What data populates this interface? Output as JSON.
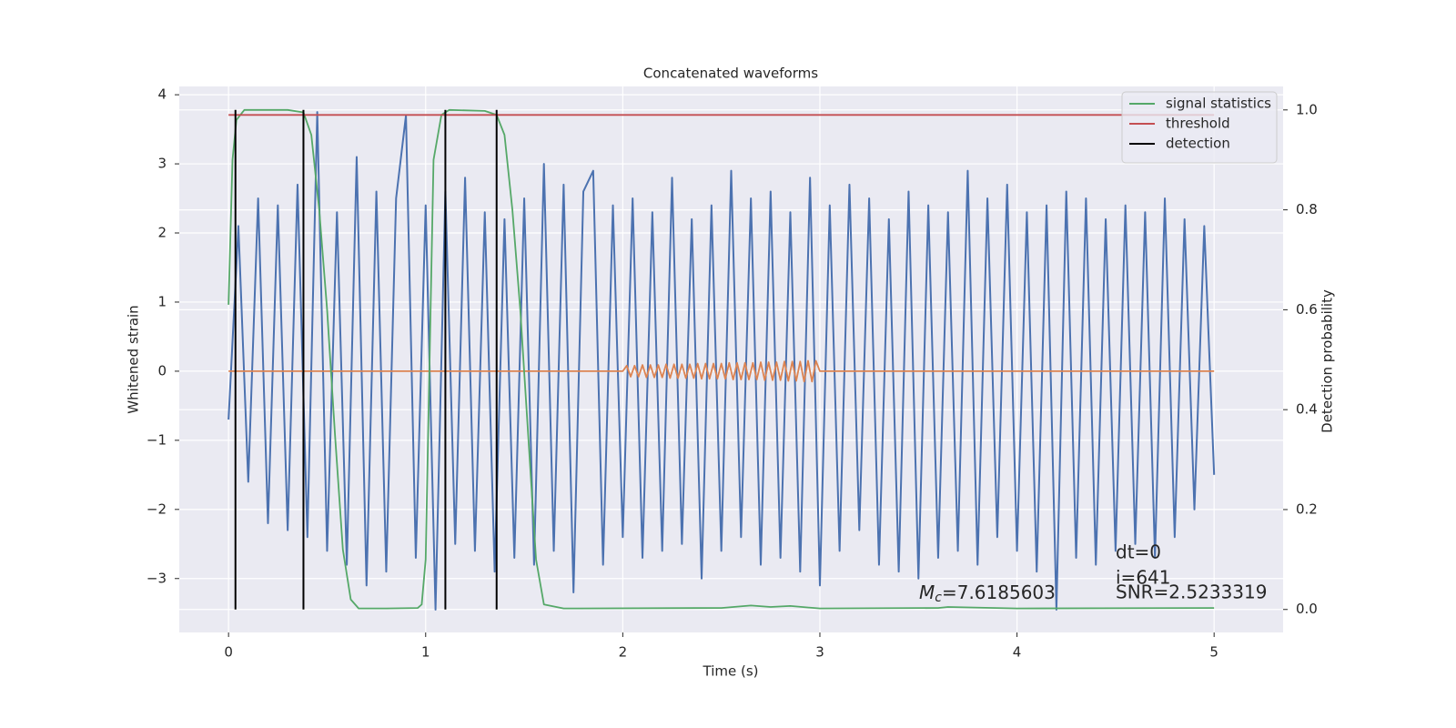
{
  "chart_data": {
    "type": "line",
    "title": "Concatenated waveforms",
    "x_label": "Time (s)",
    "y_label": "Whitened strain",
    "y2_label": "Detection probability",
    "xlim": [
      -0.25,
      5.35
    ],
    "ylim": [
      -3.78,
      4.12
    ],
    "y2lim": [
      -0.046,
      1.047
    ],
    "xticks": [
      0,
      1,
      2,
      3,
      4,
      5
    ],
    "yticks": [
      {
        "value": -3,
        "label": "−3"
      },
      {
        "value": -2,
        "label": "−2"
      },
      {
        "value": -1,
        "label": "−1"
      },
      0,
      1,
      2,
      3,
      4
    ],
    "y2ticks": [
      {
        "value": 0,
        "label": "0.0"
      },
      {
        "value": 0.2,
        "label": "0.2"
      },
      {
        "value": 0.4,
        "label": "0.4"
      },
      {
        "value": 0.6,
        "label": "0.6"
      },
      {
        "value": 0.8,
        "label": "0.8"
      },
      {
        "value": 1.0,
        "label": "1.0"
      }
    ],
    "grid": true,
    "legend": "upper right",
    "series": [
      {
        "color": "#4c72b0",
        "x": [
          0,
          0.05,
          0.1,
          0.15,
          0.2,
          0.25,
          0.3,
          0.35,
          0.4,
          0.45,
          0.5,
          0.55,
          0.6,
          0.65,
          0.7,
          0.75,
          0.8,
          0.85,
          0.9,
          0.95,
          1,
          1.05,
          1.1,
          1.15,
          1.2,
          1.25,
          1.3,
          1.35,
          1.4,
          1.45,
          1.5,
          1.55,
          1.6,
          1.65,
          1.7,
          1.75,
          1.8,
          1.85,
          1.9,
          1.95,
          2,
          2.05,
          2.1,
          2.15,
          2.2,
          2.25,
          2.3,
          2.35,
          2.4,
          2.45,
          2.5,
          2.55,
          2.6,
          2.65,
          2.7,
          2.75,
          2.8,
          2.85,
          2.9,
          2.95,
          3,
          3.05,
          3.1,
          3.15,
          3.2,
          3.25,
          3.3,
          3.35,
          3.4,
          3.45,
          3.5,
          3.55,
          3.6,
          3.65,
          3.7,
          3.75,
          3.8,
          3.85,
          3.9,
          3.95,
          4,
          4.05,
          4.1,
          4.15,
          4.2,
          4.25,
          4.3,
          4.35,
          4.4,
          4.45,
          4.5,
          4.55,
          4.6,
          4.65,
          4.7,
          4.75,
          4.8,
          4.85,
          4.9,
          4.95,
          5
        ],
        "values": [
          -0.7,
          2.1,
          -1.6,
          2.5,
          -2.2,
          2.4,
          -2.3,
          2.7,
          -2.4,
          3.75,
          -2.6,
          2.3,
          -2.8,
          3.1,
          -3.1,
          2.6,
          -2.9,
          2.5,
          3.7,
          -2.7,
          2.4,
          -3.45,
          2.6,
          -2.5,
          2.8,
          -2.6,
          2.3,
          -2.9,
          2.2,
          -2.7,
          2.5,
          -2.8,
          3.0,
          -2.6,
          2.7,
          -3.2,
          2.6,
          2.9,
          -2.8,
          2.4,
          -2.4,
          2.5,
          -2.7,
          2.3,
          -2.6,
          2.8,
          -2.5,
          2.2,
          -3.0,
          2.4,
          -2.6,
          2.9,
          -2.4,
          2.5,
          -2.8,
          2.6,
          -2.7,
          2.3,
          -2.9,
          2.8,
          -3.1,
          2.4,
          -2.6,
          2.7,
          -2.3,
          2.5,
          -2.8,
          2.2,
          -2.9,
          2.6,
          -3.0,
          2.4,
          -2.7,
          2.3,
          -2.6,
          2.9,
          -2.8,
          2.5,
          -2.4,
          2.7,
          -2.6,
          2.3,
          -2.9,
          2.4,
          -3.45,
          2.6,
          -2.7,
          2.5,
          -2.8,
          2.2,
          -2.6,
          2.4,
          -2.5,
          2.3,
          -2.7,
          2.5,
          -2.4,
          2.2,
          -2.0,
          2.1,
          -1.5
        ]
      },
      {
        "color": "#dd8452",
        "x": [
          0,
          2,
          2.02,
          2.04,
          2.06,
          2.08,
          2.1,
          2.12,
          2.14,
          2.16,
          2.18,
          2.2,
          2.22,
          2.24,
          2.26,
          2.28,
          2.3,
          2.32,
          2.34,
          2.36,
          2.38,
          2.4,
          2.42,
          2.44,
          2.46,
          2.48,
          2.5,
          2.52,
          2.54,
          2.56,
          2.58,
          2.6,
          2.62,
          2.64,
          2.66,
          2.68,
          2.7,
          2.72,
          2.74,
          2.76,
          2.78,
          2.8,
          2.82,
          2.84,
          2.86,
          2.88,
          2.9,
          2.92,
          2.94,
          2.96,
          2.98,
          3,
          5
        ],
        "values": [
          0,
          0,
          0.08,
          -0.08,
          0.08,
          -0.08,
          0.09,
          -0.09,
          0.09,
          -0.09,
          0.09,
          -0.09,
          0.1,
          -0.1,
          0.1,
          -0.1,
          0.1,
          -0.1,
          0.1,
          -0.1,
          0.11,
          -0.11,
          0.11,
          -0.11,
          0.11,
          -0.11,
          0.11,
          -0.11,
          0.12,
          -0.12,
          0.12,
          -0.12,
          0.12,
          -0.12,
          0.12,
          -0.12,
          0.13,
          -0.13,
          0.13,
          -0.13,
          0.13,
          -0.13,
          0.14,
          -0.14,
          0.14,
          -0.14,
          0.14,
          -0.15,
          0.15,
          -0.15,
          0.15,
          0,
          0
        ]
      },
      {
        "name": "signal statistics",
        "color": "#55a868",
        "axis": "y2",
        "x": [
          0,
          0.02,
          0.04,
          0.08,
          0.3,
          0.38,
          0.42,
          0.46,
          0.5,
          0.54,
          0.58,
          0.62,
          0.66,
          0.8,
          0.96,
          0.98,
          1.0,
          1.02,
          1.04,
          1.08,
          1.12,
          1.3,
          1.36,
          1.4,
          1.44,
          1.48,
          1.52,
          1.56,
          1.6,
          1.7,
          2.5,
          2.65,
          2.75,
          2.85,
          3.0,
          3.6,
          3.65,
          4.0,
          5.0
        ],
        "values": [
          0.61,
          0.9,
          0.98,
          1.0,
          1.0,
          0.995,
          0.95,
          0.8,
          0.6,
          0.35,
          0.12,
          0.02,
          0.002,
          0.002,
          0.003,
          0.01,
          0.1,
          0.5,
          0.9,
          0.99,
          1.0,
          0.998,
          0.99,
          0.95,
          0.8,
          0.6,
          0.35,
          0.1,
          0.01,
          0.002,
          0.003,
          0.008,
          0.005,
          0.007,
          0.002,
          0.003,
          0.005,
          0.002,
          0.003
        ]
      },
      {
        "name": "threshold",
        "color": "#c44e52",
        "axis": "y2",
        "x": [
          0,
          5
        ],
        "values": [
          0.99,
          0.99
        ]
      },
      {
        "name": "detection",
        "color": "#000000",
        "axis": "y2",
        "x": [
          0.035,
          0.38,
          1.1,
          1.36
        ],
        "span": [
          0,
          1
        ]
      }
    ],
    "annotations": {
      "mc": {
        "symbol": "M",
        "sub": "c",
        "text": "=7.6185603"
      },
      "dt": "dt=0",
      "i": "i=641",
      "snr": "SNR=2.5233319"
    }
  }
}
